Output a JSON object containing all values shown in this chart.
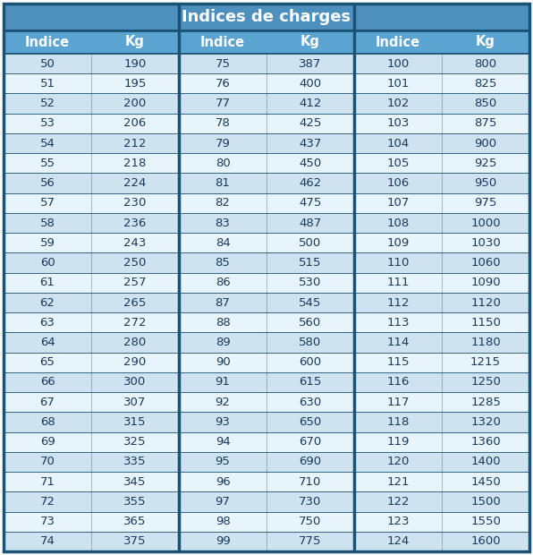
{
  "title": "Indices de charges",
  "header": [
    "Indice",
    "Kg",
    "Indice",
    "Kg",
    "Indice",
    "Kg"
  ],
  "col1_indice": [
    50,
    51,
    52,
    53,
    54,
    55,
    56,
    57,
    58,
    59,
    60,
    61,
    62,
    63,
    64,
    65,
    66,
    67,
    68,
    69,
    70,
    71,
    72,
    73,
    74
  ],
  "col1_kg": [
    190,
    195,
    200,
    206,
    212,
    218,
    224,
    230,
    236,
    243,
    250,
    257,
    265,
    272,
    280,
    290,
    300,
    307,
    315,
    325,
    335,
    345,
    355,
    365,
    375
  ],
  "col2_indice": [
    75,
    76,
    77,
    78,
    79,
    80,
    81,
    82,
    83,
    84,
    85,
    86,
    87,
    88,
    89,
    90,
    91,
    92,
    93,
    94,
    95,
    96,
    97,
    98,
    99
  ],
  "col2_kg": [
    387,
    400,
    412,
    425,
    437,
    450,
    462,
    475,
    487,
    500,
    515,
    530,
    545,
    560,
    580,
    600,
    615,
    630,
    650,
    670,
    690,
    710,
    730,
    750,
    775
  ],
  "col3_indice": [
    100,
    101,
    102,
    103,
    104,
    105,
    106,
    107,
    108,
    109,
    110,
    111,
    112,
    113,
    114,
    115,
    116,
    117,
    118,
    119,
    120,
    121,
    122,
    123,
    124
  ],
  "col3_kg": [
    800,
    825,
    850,
    875,
    900,
    925,
    950,
    975,
    1000,
    1030,
    1060,
    1090,
    1120,
    1150,
    1180,
    1215,
    1250,
    1285,
    1320,
    1360,
    1400,
    1450,
    1500,
    1550,
    1600
  ],
  "title_bg": "#4d8fbd",
  "header_bg": "#5ba3d0",
  "row_even_bg": "#cfe2f0",
  "row_odd_bg": "#e8f4fb",
  "border_color": "#1a5276",
  "title_color": "#ffffff",
  "header_color": "#ffffff",
  "data_color": "#1a3a5c",
  "title_fontsize": 13,
  "header_fontsize": 10.5,
  "data_fontsize": 9.5,
  "fig_w": 5.96,
  "fig_h": 6.2,
  "dpi": 100
}
